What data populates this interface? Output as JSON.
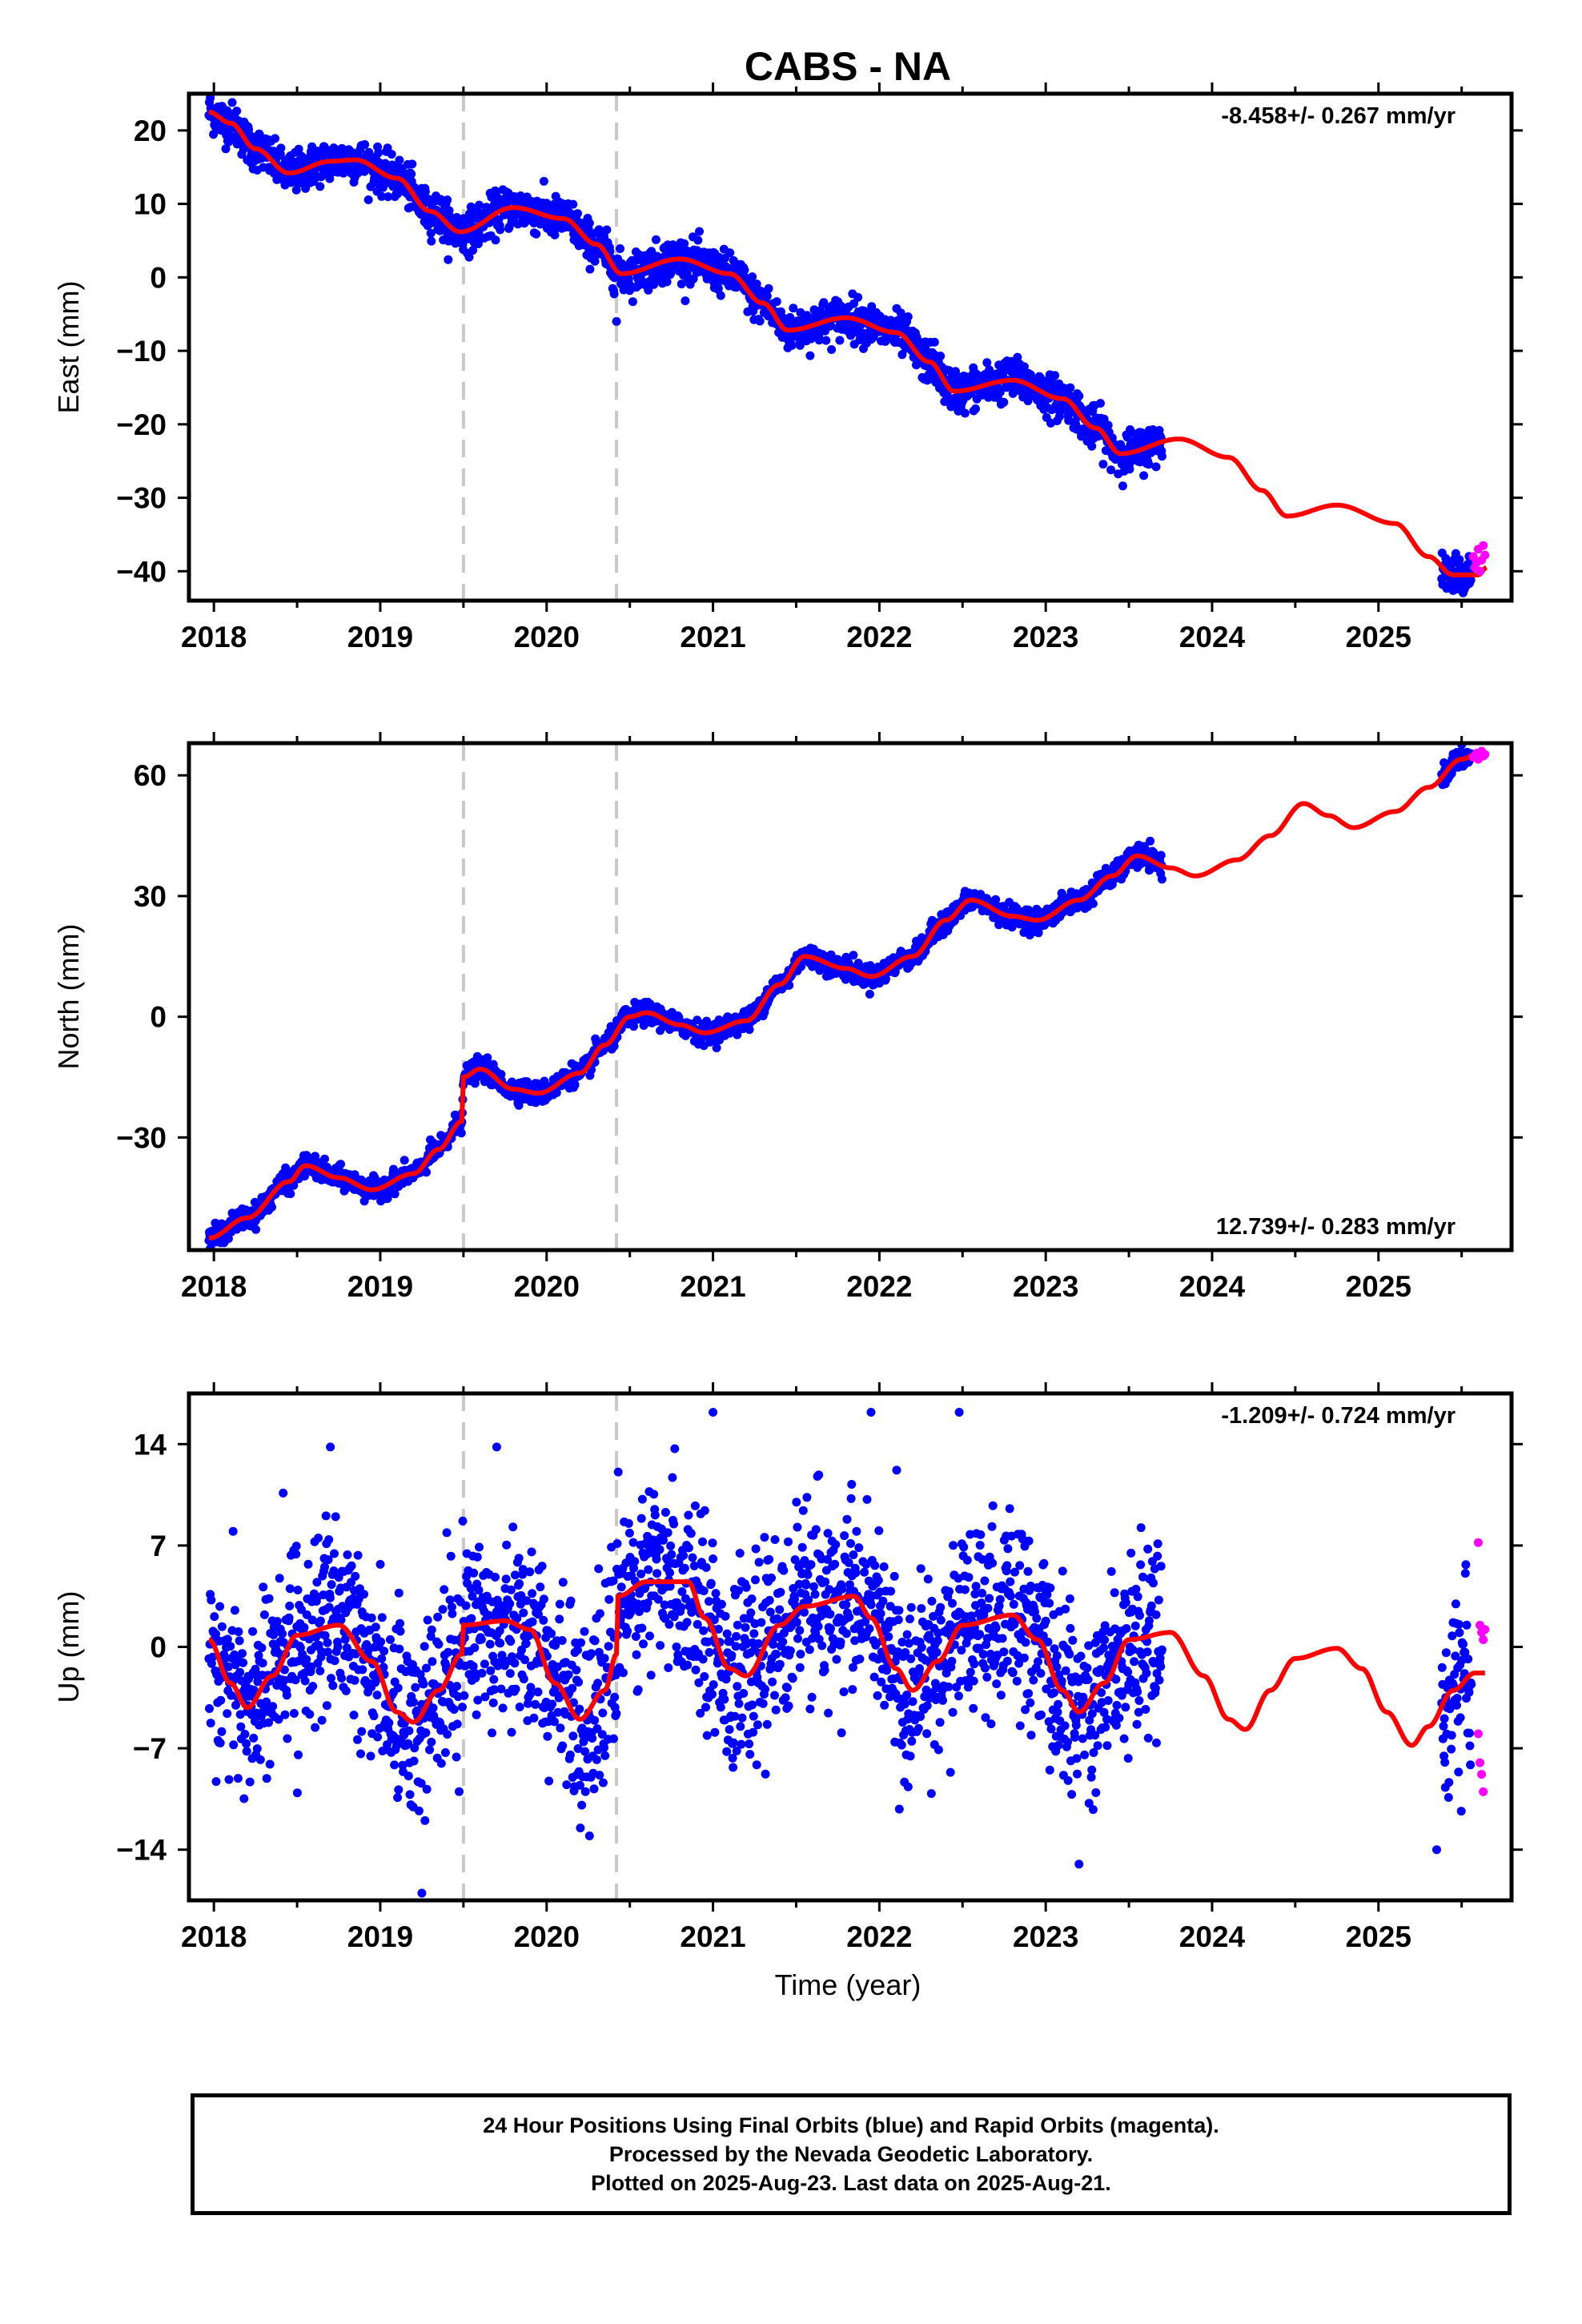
{
  "title": "CABS - NA",
  "colors": {
    "final": "#0000ff",
    "rapid": "#ff00ff",
    "model": "#ff0000",
    "offset_line": "#c8c8c8"
  },
  "xlabel": "Time (year)",
  "footer": {
    "line1": "24 Hour Positions Using Final Orbits (blue) and Rapid Orbits (magenta).",
    "line2": "Processed by the Nevada Geodetic Laboratory.",
    "line3": "Plotted on 2025-Aug-23. Last data on 2025-Aug-21."
  },
  "chart_data": [
    {
      "type": "scatter",
      "component": "East",
      "ylabel": "East (mm)",
      "rate_text": "-8.458+/- 0.267 mm/yr",
      "xlim": [
        2017.85,
        2025.8
      ],
      "ylim": [
        -44,
        25
      ],
      "xticks": [
        2018,
        2019,
        2020,
        2021,
        2022,
        2023,
        2024,
        2025
      ],
      "yticks": [
        20,
        10,
        0,
        -10,
        -20,
        -30,
        -40
      ],
      "offset_epochs": [
        2019.5,
        2020.42
      ],
      "data_span_final": [
        [
          2017.97,
          2023.7
        ],
        [
          2025.38,
          2025.56
        ]
      ],
      "data_span_rapid": [
        2025.56,
        2025.64
      ],
      "noise_mm": 1.4,
      "model_curve": [
        [
          2017.97,
          22.5
        ],
        [
          2018.1,
          21
        ],
        [
          2018.25,
          17.5
        ],
        [
          2018.45,
          14.2
        ],
        [
          2018.7,
          15.8
        ],
        [
          2018.85,
          16
        ],
        [
          2019.1,
          13.5
        ],
        [
          2019.3,
          9
        ],
        [
          2019.48,
          6.2
        ],
        [
          2019.8,
          9.5
        ],
        [
          2020.1,
          8
        ],
        [
          2020.3,
          4.5
        ],
        [
          2020.45,
          0.5
        ],
        [
          2020.8,
          2.5
        ],
        [
          2021.1,
          0.5
        ],
        [
          2021.3,
          -3.5
        ],
        [
          2021.45,
          -7.2
        ],
        [
          2021.8,
          -5.5
        ],
        [
          2022.1,
          -7.5
        ],
        [
          2022.3,
          -11.5
        ],
        [
          2022.45,
          -15.5
        ],
        [
          2022.8,
          -14
        ],
        [
          2023.1,
          -16.5
        ],
        [
          2023.3,
          -20.5
        ],
        [
          2023.45,
          -24
        ],
        [
          2023.8,
          -22
        ],
        [
          2024.1,
          -24.5
        ],
        [
          2024.3,
          -29
        ],
        [
          2024.45,
          -32.5
        ],
        [
          2024.75,
          -31
        ],
        [
          2025.1,
          -33.5
        ],
        [
          2025.3,
          -38
        ],
        [
          2025.45,
          -40.5
        ],
        [
          2025.6,
          -40.5
        ],
        [
          2025.65,
          -39.5
        ]
      ],
      "outliers": [
        [
          2020.42,
          -6
        ]
      ],
      "rapid_points": [
        [
          2025.57,
          -38
        ],
        [
          2025.58,
          -39.5
        ],
        [
          2025.6,
          -37
        ],
        [
          2025.61,
          -40
        ],
        [
          2025.62,
          -38.5
        ],
        [
          2025.63,
          -36.5
        ],
        [
          2025.64,
          -37.8
        ],
        [
          2025.59,
          -38.8
        ]
      ]
    },
    {
      "type": "scatter",
      "component": "North",
      "ylabel": "North (mm)",
      "rate_text": "12.739+/- 0.283 mm/yr",
      "xlim": [
        2017.85,
        2025.8
      ],
      "ylim": [
        -58,
        68
      ],
      "xticks": [
        2018,
        2019,
        2020,
        2021,
        2022,
        2023,
        2024,
        2025
      ],
      "yticks": [
        60,
        30,
        0,
        -30
      ],
      "offset_epochs": [
        2019.5,
        2020.42
      ],
      "data_span_final": [
        [
          2017.97,
          2023.7
        ],
        [
          2025.38,
          2025.56
        ]
      ],
      "data_span_rapid": [
        2025.56,
        2025.64
      ],
      "noise_mm": 1.3,
      "model_curve": [
        [
          2017.97,
          -55
        ],
        [
          2018.2,
          -50
        ],
        [
          2018.45,
          -41
        ],
        [
          2018.55,
          -37
        ],
        [
          2018.75,
          -40
        ],
        [
          2018.95,
          -43
        ],
        [
          2019.2,
          -39
        ],
        [
          2019.35,
          -33
        ],
        [
          2019.49,
          -26
        ],
        [
          2019.5,
          -15
        ],
        [
          2019.6,
          -13
        ],
        [
          2019.8,
          -18
        ],
        [
          2019.95,
          -19
        ],
        [
          2020.2,
          -14
        ],
        [
          2020.35,
          -7
        ],
        [
          2020.5,
          0
        ],
        [
          2020.6,
          1
        ],
        [
          2020.8,
          -2
        ],
        [
          2020.95,
          -4
        ],
        [
          2021.2,
          -1
        ],
        [
          2021.4,
          8
        ],
        [
          2021.55,
          15
        ],
        [
          2021.8,
          12
        ],
        [
          2021.95,
          10
        ],
        [
          2022.2,
          15
        ],
        [
          2022.4,
          24
        ],
        [
          2022.55,
          29
        ],
        [
          2022.8,
          25
        ],
        [
          2022.95,
          24
        ],
        [
          2023.2,
          29
        ],
        [
          2023.4,
          35
        ],
        [
          2023.55,
          40
        ],
        [
          2023.75,
          37
        ],
        [
          2023.9,
          35
        ],
        [
          2024.15,
          39
        ],
        [
          2024.35,
          45
        ],
        [
          2024.55,
          53
        ],
        [
          2024.7,
          50
        ],
        [
          2024.85,
          47
        ],
        [
          2025.1,
          51
        ],
        [
          2025.3,
          57
        ],
        [
          2025.5,
          64
        ],
        [
          2025.62,
          66
        ],
        [
          2025.65,
          65
        ]
      ],
      "outliers": [],
      "rapid_points": [
        [
          2025.57,
          64.5
        ],
        [
          2025.59,
          65.5
        ],
        [
          2025.6,
          64
        ],
        [
          2025.62,
          66
        ],
        [
          2025.63,
          64.8
        ],
        [
          2025.64,
          65.2
        ]
      ]
    },
    {
      "type": "scatter",
      "component": "Up",
      "ylabel": "Up (mm)",
      "rate_text": "-1.209+/- 0.724 mm/yr",
      "xlim": [
        2017.85,
        2025.8
      ],
      "ylim": [
        -17.5,
        17.5
      ],
      "xticks": [
        2018,
        2019,
        2020,
        2021,
        2022,
        2023,
        2024,
        2025
      ],
      "yticks": [
        14,
        7,
        0,
        -7,
        -14
      ],
      "offset_epochs": [
        2019.5,
        2020.42
      ],
      "data_span_final": [
        [
          2017.97,
          2023.7
        ],
        [
          2025.38,
          2025.56
        ]
      ],
      "data_span_rapid": [
        2025.56,
        2025.64
      ],
      "noise_mm": 3.2,
      "model_curve": [
        [
          2017.97,
          0.5
        ],
        [
          2018.1,
          -2.5
        ],
        [
          2018.2,
          -4.2
        ],
        [
          2018.35,
          -2
        ],
        [
          2018.5,
          0.8
        ],
        [
          2018.75,
          1.5
        ],
        [
          2018.95,
          -1
        ],
        [
          2019.1,
          -4.5
        ],
        [
          2019.2,
          -5.2
        ],
        [
          2019.35,
          -3
        ],
        [
          2019.49,
          -0.5
        ],
        [
          2019.5,
          1.5
        ],
        [
          2019.75,
          1.8
        ],
        [
          2019.9,
          1.2
        ],
        [
          2020.05,
          -2.5
        ],
        [
          2020.2,
          -5
        ],
        [
          2020.35,
          -3
        ],
        [
          2020.42,
          -0.5
        ],
        [
          2020.43,
          3.5
        ],
        [
          2020.6,
          4.5
        ],
        [
          2020.85,
          4.5
        ],
        [
          2020.95,
          2
        ],
        [
          2021.1,
          -1.5
        ],
        [
          2021.2,
          -2
        ],
        [
          2021.4,
          1.5
        ],
        [
          2021.55,
          2.8
        ],
        [
          2021.85,
          3.5
        ],
        [
          2021.95,
          2
        ],
        [
          2022.1,
          -1.5
        ],
        [
          2022.2,
          -3
        ],
        [
          2022.35,
          -1
        ],
        [
          2022.5,
          1.5
        ],
        [
          2022.8,
          2.2
        ],
        [
          2022.95,
          0.5
        ],
        [
          2023.1,
          -3
        ],
        [
          2023.2,
          -4.5
        ],
        [
          2023.35,
          -2.5
        ],
        [
          2023.5,
          0.5
        ],
        [
          2023.75,
          1
        ],
        [
          2023.95,
          -2
        ],
        [
          2024.1,
          -5
        ],
        [
          2024.2,
          -5.7
        ],
        [
          2024.35,
          -3
        ],
        [
          2024.5,
          -0.8
        ],
        [
          2024.75,
          -0.1
        ],
        [
          2024.9,
          -1.5
        ],
        [
          2025.05,
          -4.5
        ],
        [
          2025.2,
          -6.8
        ],
        [
          2025.3,
          -5.5
        ],
        [
          2025.45,
          -3
        ],
        [
          2025.58,
          -1.8
        ],
        [
          2025.64,
          -1.8
        ]
      ],
      "outliers": [
        [
          2019.25,
          -17
        ],
        [
          2021.0,
          16.2
        ],
        [
          2021.95,
          16.2
        ],
        [
          2022.48,
          16.2
        ],
        [
          2023.2,
          -15
        ],
        [
          2025.35,
          -14
        ],
        [
          2018.7,
          13.8
        ],
        [
          2019.7,
          13.8
        ],
        [
          2022.12,
          -11.2
        ]
      ],
      "rapid_points": [
        [
          2025.6,
          7.2
        ],
        [
          2025.61,
          1.5
        ],
        [
          2025.62,
          1
        ],
        [
          2025.63,
          0.5
        ],
        [
          2025.6,
          -6
        ],
        [
          2025.61,
          -8
        ],
        [
          2025.62,
          -8.8
        ],
        [
          2025.63,
          -10
        ],
        [
          2025.64,
          1.2
        ]
      ]
    }
  ]
}
